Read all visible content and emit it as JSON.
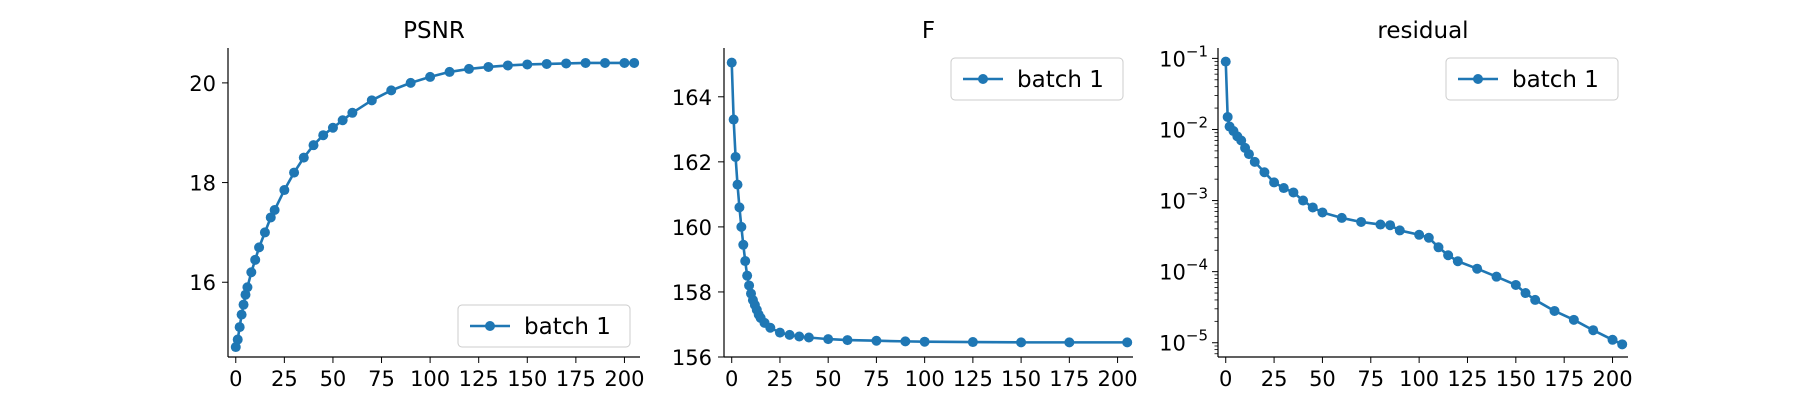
{
  "chart_data": [
    {
      "type": "line",
      "title": "PSNR",
      "xlabel": "",
      "ylabel": "",
      "xlim": [
        -4,
        208
      ],
      "ylim": [
        14.5,
        20.7
      ],
      "yscale": "linear",
      "xticks": [
        0,
        25,
        50,
        75,
        100,
        125,
        150,
        175,
        200
      ],
      "yticks": [
        16,
        18,
        20
      ],
      "ytick_labels": [
        "16",
        "18",
        "20"
      ],
      "grid": false,
      "legend_position": "lower-right",
      "series": [
        {
          "name": "batch 1",
          "color": "#1f77b4",
          "marker": "circle",
          "x": [
            0,
            1,
            2,
            3,
            4,
            5,
            6,
            8,
            10,
            12,
            15,
            18,
            20,
            25,
            30,
            35,
            40,
            45,
            50,
            55,
            60,
            70,
            80,
            90,
            100,
            110,
            120,
            130,
            140,
            150,
            160,
            170,
            180,
            190,
            200,
            205
          ],
          "y": [
            14.7,
            14.85,
            15.1,
            15.35,
            15.55,
            15.75,
            15.9,
            16.2,
            16.45,
            16.7,
            17.0,
            17.3,
            17.45,
            17.85,
            18.2,
            18.5,
            18.75,
            18.95,
            19.1,
            19.25,
            19.4,
            19.65,
            19.85,
            20.0,
            20.12,
            20.22,
            20.28,
            20.32,
            20.35,
            20.37,
            20.38,
            20.39,
            20.4,
            20.4,
            20.4,
            20.4
          ]
        }
      ]
    },
    {
      "type": "line",
      "title": "F",
      "xlabel": "",
      "ylabel": "",
      "xlim": [
        -4,
        208
      ],
      "ylim": [
        156,
        165.5
      ],
      "yscale": "linear",
      "xticks": [
        0,
        25,
        50,
        75,
        100,
        125,
        150,
        175,
        200
      ],
      "yticks": [
        156,
        158,
        160,
        162,
        164
      ],
      "ytick_labels": [
        "156",
        "158",
        "160",
        "162",
        "164"
      ],
      "grid": false,
      "legend_position": "upper-right",
      "series": [
        {
          "name": "batch 1",
          "color": "#1f77b4",
          "marker": "circle",
          "x": [
            0,
            1,
            2,
            3,
            4,
            5,
            6,
            7,
            8,
            9,
            10,
            11,
            12,
            13,
            14,
            15,
            17,
            20,
            25,
            30,
            35,
            40,
            50,
            60,
            75,
            90,
            100,
            125,
            150,
            175,
            205
          ],
          "y": [
            165.05,
            163.3,
            162.15,
            161.3,
            160.6,
            160.0,
            159.45,
            158.95,
            158.5,
            158.2,
            157.95,
            157.75,
            157.6,
            157.45,
            157.3,
            157.2,
            157.05,
            156.9,
            156.75,
            156.68,
            156.63,
            156.6,
            156.55,
            156.52,
            156.5,
            156.48,
            156.47,
            156.46,
            156.45,
            156.45,
            156.45
          ]
        }
      ]
    },
    {
      "type": "line",
      "title": "residual",
      "xlabel": "",
      "ylabel": "",
      "xlim": [
        -4,
        208
      ],
      "ylim": [
        6.3e-06,
        0.14
      ],
      "yscale": "log",
      "xticks": [
        0,
        25,
        50,
        75,
        100,
        125,
        150,
        175,
        200
      ],
      "yticks": [
        1e-05,
        0.0001,
        0.001,
        0.01,
        0.1
      ],
      "ytick_labels": [
        "10−5",
        "10−4",
        "10−3",
        "10−2",
        "10−1"
      ],
      "grid": false,
      "legend_position": "upper-right",
      "series": [
        {
          "name": "batch 1",
          "color": "#1f77b4",
          "marker": "circle",
          "x": [
            0,
            1,
            2,
            4,
            6,
            8,
            10,
            12,
            15,
            20,
            25,
            30,
            35,
            40,
            45,
            50,
            60,
            70,
            80,
            85,
            90,
            100,
            105,
            110,
            115,
            120,
            130,
            140,
            150,
            155,
            160,
            170,
            180,
            190,
            200,
            205
          ],
          "y": [
            0.09,
            0.015,
            0.011,
            0.0095,
            0.008,
            0.007,
            0.0055,
            0.0045,
            0.0035,
            0.0025,
            0.0018,
            0.0015,
            0.0013,
            0.001,
            0.0008,
            0.00068,
            0.00057,
            0.0005,
            0.00046,
            0.00045,
            0.00038,
            0.00033,
            0.0003,
            0.00022,
            0.00017,
            0.00014,
            0.00011,
            8.5e-05,
            6.5e-05,
            5e-05,
            4e-05,
            2.8e-05,
            2.1e-05,
            1.5e-05,
            1.1e-05,
            9.5e-06
          ]
        }
      ]
    }
  ]
}
